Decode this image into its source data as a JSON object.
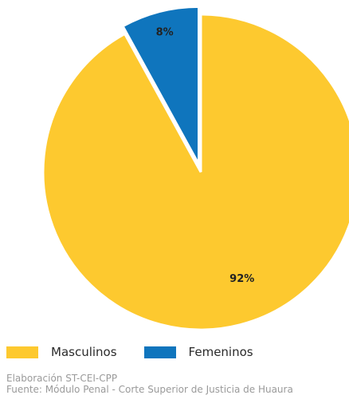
{
  "chart_data": {
    "type": "pie",
    "categories": [
      "Masculinos",
      "Femeninos"
    ],
    "values": [
      92,
      8
    ],
    "labels": [
      "92%",
      "8%"
    ],
    "colors": [
      "#FDC92F",
      "#0F75BD"
    ],
    "exploded": "Femeninos",
    "legend_position": "bottom-left"
  },
  "legend": {
    "items": [
      {
        "label": "Masculinos",
        "color": "#FDC92F"
      },
      {
        "label": "Femeninos",
        "color": "#0F75BD"
      }
    ]
  },
  "footer": {
    "line1": "Elaboración ST-CEI-CPP",
    "line2": "Fuente: Módulo Penal - Corte Superior de Justicia de Huaura"
  }
}
